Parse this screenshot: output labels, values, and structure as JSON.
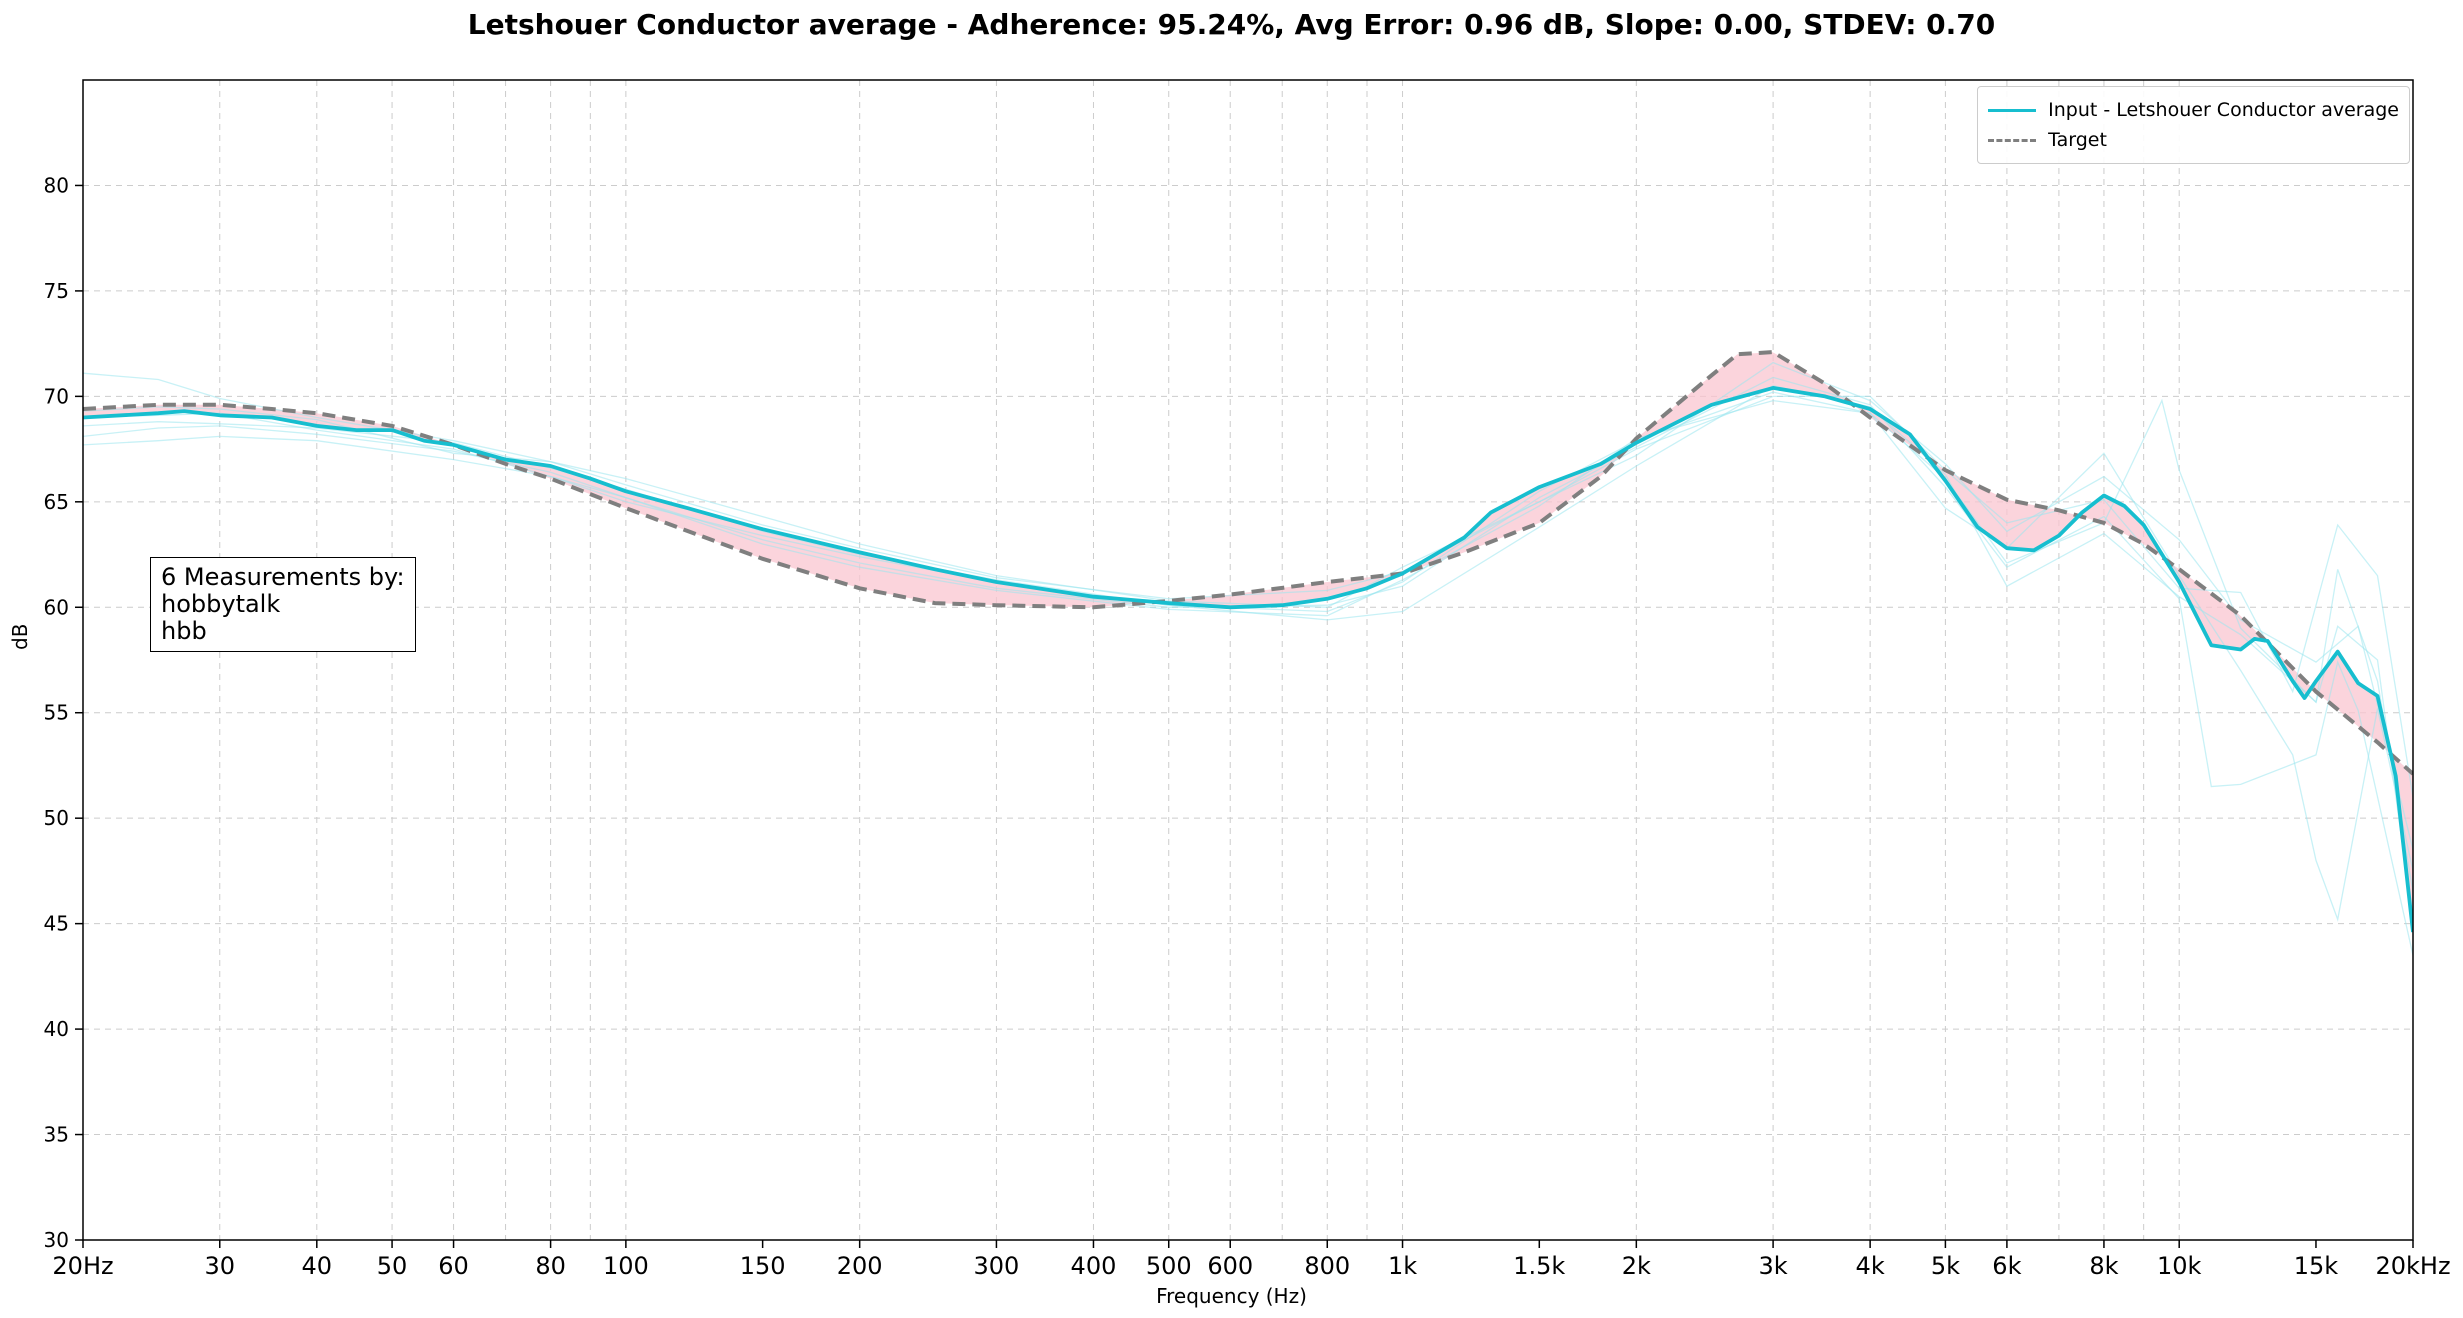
{
  "chart_data": {
    "type": "line",
    "title": "Letshouer Conductor average - Adherence: 95.24%, Avg Error: 0.96 dB, Slope: 0.00, STDEV: 0.70",
    "xlabel": "Frequency (Hz)",
    "ylabel": "dB",
    "xscale": "log",
    "xlim": [
      20,
      20000
    ],
    "ylim": [
      30,
      85
    ],
    "grid": true,
    "legend_position": "top-right",
    "x_ticks": [
      {
        "value": 20,
        "label": "20Hz"
      },
      {
        "value": 30,
        "label": "30"
      },
      {
        "value": 40,
        "label": "40"
      },
      {
        "value": 50,
        "label": "50"
      },
      {
        "value": 60,
        "label": "60"
      },
      {
        "value": 80,
        "label": "80"
      },
      {
        "value": 100,
        "label": "100"
      },
      {
        "value": 150,
        "label": "150"
      },
      {
        "value": 200,
        "label": "200"
      },
      {
        "value": 300,
        "label": "300"
      },
      {
        "value": 400,
        "label": "400"
      },
      {
        "value": 500,
        "label": "500"
      },
      {
        "value": 600,
        "label": "600"
      },
      {
        "value": 800,
        "label": "800"
      },
      {
        "value": 1000,
        "label": "1k"
      },
      {
        "value": 1500,
        "label": "1.5k"
      },
      {
        "value": 2000,
        "label": "2k"
      },
      {
        "value": 3000,
        "label": "3k"
      },
      {
        "value": 4000,
        "label": "4k"
      },
      {
        "value": 5000,
        "label": "5k"
      },
      {
        "value": 6000,
        "label": "6k"
      },
      {
        "value": 8000,
        "label": "8k"
      },
      {
        "value": 10000,
        "label": "10k"
      },
      {
        "value": 15000,
        "label": "15k"
      },
      {
        "value": 20000,
        "label": "20kHz"
      }
    ],
    "y_ticks": [
      30,
      35,
      40,
      45,
      50,
      55,
      60,
      65,
      70,
      75,
      80
    ],
    "series": [
      {
        "name": "Input - Letshouer Conductor average",
        "color": "#17becf",
        "style": "solid",
        "points": [
          [
            20,
            69.0
          ],
          [
            25,
            69.2
          ],
          [
            27,
            69.3
          ],
          [
            30,
            69.1
          ],
          [
            35,
            69.0
          ],
          [
            40,
            68.6
          ],
          [
            45,
            68.4
          ],
          [
            50,
            68.4
          ],
          [
            55,
            67.9
          ],
          [
            60,
            67.7
          ],
          [
            70,
            67.0
          ],
          [
            80,
            66.7
          ],
          [
            90,
            66.1
          ],
          [
            100,
            65.5
          ],
          [
            120,
            64.7
          ],
          [
            150,
            63.7
          ],
          [
            200,
            62.6
          ],
          [
            250,
            61.8
          ],
          [
            300,
            61.2
          ],
          [
            400,
            60.5
          ],
          [
            500,
            60.2
          ],
          [
            600,
            60.0
          ],
          [
            700,
            60.1
          ],
          [
            800,
            60.4
          ],
          [
            900,
            60.9
          ],
          [
            1000,
            61.6
          ],
          [
            1200,
            63.3
          ],
          [
            1300,
            64.5
          ],
          [
            1500,
            65.7
          ],
          [
            1800,
            66.8
          ],
          [
            2000,
            67.8
          ],
          [
            2500,
            69.6
          ],
          [
            3000,
            70.4
          ],
          [
            3500,
            70.0
          ],
          [
            4000,
            69.4
          ],
          [
            4500,
            68.2
          ],
          [
            5000,
            66.0
          ],
          [
            5500,
            63.8
          ],
          [
            6000,
            62.8
          ],
          [
            6500,
            62.7
          ],
          [
            7000,
            63.4
          ],
          [
            7500,
            64.5
          ],
          [
            8000,
            65.3
          ],
          [
            8500,
            64.8
          ],
          [
            9000,
            63.9
          ],
          [
            10000,
            61.2
          ],
          [
            11000,
            58.2
          ],
          [
            12000,
            58.0
          ],
          [
            12500,
            58.5
          ],
          [
            13000,
            58.4
          ],
          [
            14000,
            56.5
          ],
          [
            14500,
            55.7
          ],
          [
            15000,
            56.5
          ],
          [
            16000,
            57.9
          ],
          [
            17000,
            56.4
          ],
          [
            18000,
            55.8
          ],
          [
            19000,
            52.0
          ],
          [
            20000,
            44.6
          ]
        ]
      },
      {
        "name": "Target",
        "color": "#7f7f7f",
        "style": "dashed",
        "points": [
          [
            20,
            69.4
          ],
          [
            25,
            69.6
          ],
          [
            30,
            69.6
          ],
          [
            35,
            69.4
          ],
          [
            40,
            69.2
          ],
          [
            50,
            68.6
          ],
          [
            60,
            67.7
          ],
          [
            70,
            66.8
          ],
          [
            80,
            66.1
          ],
          [
            100,
            64.7
          ],
          [
            150,
            62.3
          ],
          [
            200,
            60.9
          ],
          [
            250,
            60.2
          ],
          [
            300,
            60.1
          ],
          [
            400,
            60.0
          ],
          [
            500,
            60.3
          ],
          [
            600,
            60.6
          ],
          [
            800,
            61.2
          ],
          [
            1000,
            61.6
          ],
          [
            1200,
            62.6
          ],
          [
            1500,
            64.0
          ],
          [
            1800,
            66.2
          ],
          [
            2000,
            68.0
          ],
          [
            2500,
            71.0
          ],
          [
            2700,
            72.0
          ],
          [
            3000,
            72.1
          ],
          [
            3500,
            70.6
          ],
          [
            4000,
            69.0
          ],
          [
            5000,
            66.5
          ],
          [
            6000,
            65.1
          ],
          [
            7000,
            64.6
          ],
          [
            8000,
            64.0
          ],
          [
            9000,
            63.0
          ],
          [
            10000,
            61.8
          ],
          [
            12000,
            59.6
          ],
          [
            15000,
            56.0
          ],
          [
            18000,
            53.6
          ],
          [
            20000,
            52.1
          ]
        ]
      }
    ],
    "measurement_traces": [
      [
        [
          20,
          71.1
        ],
        [
          25,
          70.8
        ],
        [
          30,
          69.9
        ],
        [
          40,
          69.0
        ],
        [
          60,
          67.9
        ],
        [
          80,
          66.9
        ],
        [
          100,
          65.8
        ],
        [
          150,
          63.9
        ],
        [
          200,
          62.8
        ],
        [
          300,
          61.4
        ],
        [
          500,
          60.4
        ],
        [
          800,
          60.8
        ],
        [
          1000,
          61.7
        ],
        [
          1500,
          65.0
        ],
        [
          2000,
          67.2
        ],
        [
          3000,
          71.6
        ],
        [
          4000,
          69.8
        ],
        [
          5000,
          66.8
        ],
        [
          6000,
          63.6
        ],
        [
          8000,
          66.2
        ],
        [
          10000,
          63.2
        ],
        [
          12000,
          59.4
        ],
        [
          15000,
          57.4
        ],
        [
          17000,
          59.1
        ],
        [
          20000,
          48.5
        ]
      ],
      [
        [
          20,
          68.1
        ],
        [
          25,
          68.5
        ],
        [
          30,
          68.6
        ],
        [
          40,
          68.2
        ],
        [
          60,
          67.4
        ],
        [
          80,
          66.4
        ],
        [
          100,
          65.2
        ],
        [
          150,
          63.2
        ],
        [
          200,
          62.1
        ],
        [
          300,
          60.9
        ],
        [
          500,
          60.0
        ],
        [
          800,
          60.1
        ],
        [
          1000,
          61.0
        ],
        [
          1500,
          65.2
        ],
        [
          2000,
          67.6
        ],
        [
          3000,
          70.9
        ],
        [
          4000,
          69.6
        ],
        [
          5000,
          65.7
        ],
        [
          6000,
          61.9
        ],
        [
          8000,
          64.3
        ],
        [
          10000,
          60.4
        ],
        [
          11000,
          51.5
        ],
        [
          12000,
          51.6
        ],
        [
          15000,
          53.0
        ],
        [
          16000,
          57.4
        ],
        [
          17000,
          55.1
        ],
        [
          20000,
          43.5
        ]
      ],
      [
        [
          20,
          67.7
        ],
        [
          25,
          67.9
        ],
        [
          30,
          68.1
        ],
        [
          40,
          67.9
        ],
        [
          60,
          67.0
        ],
        [
          80,
          66.2
        ],
        [
          100,
          65.2
        ],
        [
          150,
          63.0
        ],
        [
          200,
          61.9
        ],
        [
          300,
          60.8
        ],
        [
          500,
          59.9
        ],
        [
          800,
          59.6
        ],
        [
          1000,
          61.3
        ],
        [
          1500,
          64.8
        ],
        [
          2000,
          68.0
        ],
        [
          3000,
          69.8
        ],
        [
          4000,
          69.2
        ],
        [
          5000,
          66.1
        ],
        [
          6000,
          62.1
        ],
        [
          8000,
          64.0
        ],
        [
          9500,
          69.8
        ],
        [
          10000,
          66.5
        ],
        [
          12000,
          59.0
        ],
        [
          15000,
          55.5
        ],
        [
          16000,
          61.8
        ],
        [
          18000,
          56.5
        ],
        [
          20000,
          46.5
        ]
      ],
      [
        [
          20,
          68.6
        ],
        [
          25,
          68.8
        ],
        [
          30,
          68.7
        ],
        [
          40,
          68.5
        ],
        [
          60,
          67.8
        ],
        [
          80,
          66.6
        ],
        [
          100,
          65.6
        ],
        [
          150,
          63.6
        ],
        [
          200,
          62.5
        ],
        [
          300,
          61.3
        ],
        [
          500,
          60.1
        ],
        [
          800,
          59.8
        ],
        [
          1000,
          61.2
        ],
        [
          1500,
          65.5
        ],
        [
          2000,
          67.9
        ],
        [
          3000,
          70.2
        ],
        [
          4000,
          69.2
        ],
        [
          5000,
          64.7
        ],
        [
          6000,
          62.8
        ],
        [
          8000,
          67.3
        ],
        [
          10000,
          61.5
        ],
        [
          12000,
          57.0
        ],
        [
          14000,
          53.0
        ],
        [
          15000,
          48.0
        ],
        [
          16000,
          45.2
        ],
        [
          18000,
          55.2
        ],
        [
          20000,
          47.5
        ]
      ],
      [
        [
          20,
          69.3
        ],
        [
          25,
          69.5
        ],
        [
          30,
          69.4
        ],
        [
          40,
          68.9
        ],
        [
          60,
          67.3
        ],
        [
          80,
          66.9
        ],
        [
          100,
          66.1
        ],
        [
          150,
          64.3
        ],
        [
          200,
          63.0
        ],
        [
          300,
          61.5
        ],
        [
          500,
          60.3
        ],
        [
          800,
          60.0
        ],
        [
          1000,
          61.9
        ],
        [
          1500,
          65.0
        ],
        [
          2000,
          67.5
        ],
        [
          3000,
          70.0
        ],
        [
          4000,
          70.0
        ],
        [
          5000,
          66.5
        ],
        [
          6000,
          64.0
        ],
        [
          8000,
          65.1
        ],
        [
          10000,
          60.9
        ],
        [
          12000,
          60.7
        ],
        [
          14000,
          56.0
        ],
        [
          16000,
          63.9
        ],
        [
          18000,
          61.5
        ],
        [
          20000,
          51.0
        ]
      ],
      [
        [
          20,
          69.0
        ],
        [
          25,
          69.1
        ],
        [
          30,
          69.2
        ],
        [
          40,
          68.4
        ],
        [
          60,
          67.5
        ],
        [
          80,
          66.2
        ],
        [
          100,
          65.0
        ],
        [
          150,
          63.4
        ],
        [
          200,
          62.4
        ],
        [
          300,
          61.2
        ],
        [
          500,
          60.1
        ],
        [
          800,
          59.4
        ],
        [
          1000,
          59.8
        ],
        [
          1500,
          63.8
        ],
        [
          2000,
          66.7
        ],
        [
          3000,
          70.5
        ],
        [
          4000,
          69.5
        ],
        [
          5000,
          66.3
        ],
        [
          6000,
          61.0
        ],
        [
          8000,
          63.5
        ],
        [
          10000,
          60.5
        ],
        [
          12000,
          58.7
        ],
        [
          15000,
          55.5
        ],
        [
          16000,
          59.1
        ],
        [
          18000,
          57.5
        ],
        [
          20000,
          45.0
        ]
      ]
    ],
    "annotation": {
      "line1": "6 Measurements by:",
      "line2": "hobbytalk",
      "line3": "hbb"
    },
    "colors": {
      "input": "#17becf",
      "target": "#7f7f7f",
      "error_fill": "#f9c6d0",
      "measurement_trace": "#9ae6ef",
      "grid": "#cccccc"
    }
  }
}
